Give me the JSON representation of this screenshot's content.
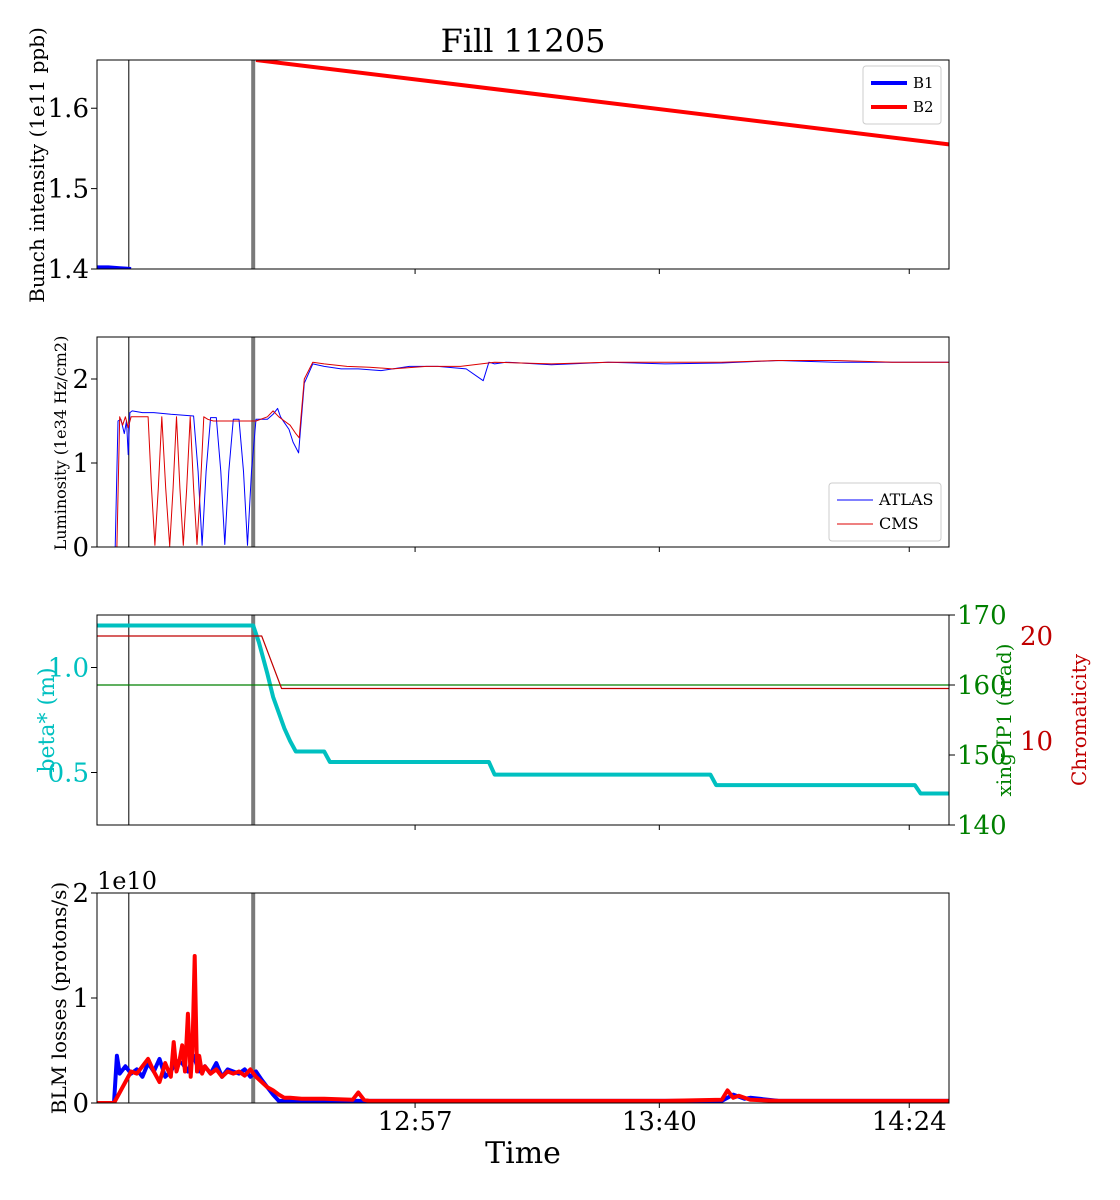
{
  "title": "Fill 11205",
  "xlabel": "Time",
  "x_ticks": [
    "12:57",
    "13:40",
    "14:24"
  ],
  "chart_data": [
    {
      "type": "line",
      "id": "intensity",
      "ylabel": "Bunch intensity (1e11 ppb)",
      "ylim": [
        1.4,
        1.66
      ],
      "yticks": [
        {
          "v": 1.4,
          "label": "1.4"
        },
        {
          "v": 1.5,
          "label": "1.5"
        },
        {
          "v": 1.6,
          "label": "1.6"
        }
      ],
      "legend": "upper right",
      "series": [
        {
          "name": "B1",
          "color": "#0000ff",
          "width": 4,
          "x": [
            0,
            2,
            4,
            6
          ],
          "y": [
            1.402,
            1.402,
            1.401,
            1.4
          ]
        },
        {
          "name": "B2",
          "color": "#ff0000",
          "width": 4,
          "x": [
            28,
            150
          ],
          "y": [
            1.66,
            1.555
          ]
        }
      ]
    },
    {
      "type": "line",
      "id": "lumi",
      "ylabel": "Luminosity (1e34 Hz/cm2)",
      "ylim": [
        0,
        2.5
      ],
      "yticks": [
        {
          "v": 0,
          "label": "0"
        },
        {
          "v": 1,
          "label": "1"
        },
        {
          "v": 2,
          "label": "2"
        }
      ],
      "legend": "lower right",
      "series": [
        {
          "name": "ATLAS",
          "color": "#0000ff",
          "width": 1,
          "x": [
            0,
            3.2,
            3.7,
            4.2,
            4.8,
            5.2,
            5.5,
            5.8,
            6.2,
            8,
            10,
            13,
            17,
            17.8,
            18.5,
            19.2,
            20,
            21,
            21.8,
            22.5,
            23.2,
            24,
            25,
            25.8,
            26.5,
            27.2,
            28,
            29,
            30,
            31,
            31.8,
            32.3,
            33,
            33.8,
            34.5,
            35.5,
            36.5,
            38,
            40,
            43,
            46,
            50,
            55,
            60,
            65,
            68,
            69,
            70,
            72,
            80,
            90,
            100,
            110,
            120,
            130,
            140,
            150
          ],
          "y": [
            0,
            0,
            1.5,
            1.52,
            1.35,
            1.5,
            1.1,
            1.6,
            1.62,
            1.6,
            1.6,
            1.58,
            1.56,
            0.9,
            0.02,
            0.9,
            1.54,
            1.54,
            0.9,
            0.03,
            0.9,
            1.52,
            1.52,
            0.9,
            0.02,
            0.9,
            1.52,
            1.52,
            1.52,
            1.58,
            1.65,
            1.55,
            1.48,
            1.4,
            1.25,
            1.12,
            1.95,
            2.18,
            2.15,
            2.12,
            2.12,
            2.1,
            2.15,
            2.15,
            2.12,
            1.98,
            2.2,
            2.18,
            2.2,
            2.17,
            2.2,
            2.18,
            2.19,
            2.22,
            2.2,
            2.2,
            2.2
          ]
        },
        {
          "name": "CMS",
          "color": "#dd0000",
          "width": 1,
          "x": [
            0,
            3.5,
            4,
            4.5,
            5,
            5.5,
            6,
            8,
            9,
            9.6,
            10.2,
            10.8,
            11.4,
            12.1,
            12.8,
            13.4,
            14,
            14.6,
            15.2,
            15.8,
            16.4,
            17,
            17.6,
            18.2,
            18.8,
            19.5,
            20.5,
            25,
            28,
            30,
            31,
            32,
            33,
            34,
            35,
            35.6,
            36.5,
            38,
            40,
            44,
            48,
            52,
            58,
            64,
            70,
            80,
            90,
            100,
            110,
            120,
            130,
            140,
            150
          ],
          "y": [
            0,
            0,
            1.55,
            1.45,
            1.55,
            1.42,
            1.55,
            1.55,
            1.55,
            0.7,
            0.02,
            0.7,
            1.55,
            0.7,
            0.01,
            0.7,
            1.55,
            0.7,
            0.02,
            0.7,
            1.55,
            0.7,
            0.03,
            0.7,
            1.55,
            1.52,
            1.5,
            1.5,
            1.5,
            1.55,
            1.62,
            1.55,
            1.5,
            1.45,
            1.35,
            1.3,
            2.0,
            2.2,
            2.18,
            2.15,
            2.14,
            2.12,
            2.15,
            2.15,
            2.2,
            2.18,
            2.2,
            2.2,
            2.2,
            2.22,
            2.22,
            2.2,
            2.2
          ]
        }
      ]
    },
    {
      "type": "line",
      "id": "optics",
      "ylabel": "beta* (m)",
      "ylabel_right1": "xing IP1 (urad)",
      "ylabel_right2": "Chromaticity",
      "ylim": [
        0.25,
        1.25
      ],
      "ylim_right1": [
        140,
        170
      ],
      "ylim_right2": [
        2,
        22
      ],
      "yticks": [
        {
          "v": 0.5,
          "label": "0.5"
        },
        {
          "v": 1.0,
          "label": "1.0"
        }
      ],
      "yticks_right1": [
        {
          "v": 140,
          "label": "140"
        },
        {
          "v": 150,
          "label": "150"
        },
        {
          "v": 160,
          "label": "160"
        },
        {
          "v": 170,
          "label": "170"
        }
      ],
      "yticks_right2": [
        {
          "v": 10,
          "label": "10"
        },
        {
          "v": 20,
          "label": "20"
        }
      ],
      "series": [
        {
          "name": "beta*",
          "axis": "left",
          "color": "#00c0c0",
          "width": 4,
          "x": [
            0,
            27.5,
            28.5,
            30,
            31,
            33,
            34,
            35,
            40,
            41,
            69,
            70,
            108,
            109,
            144,
            145,
            150
          ],
          "y": [
            1.2,
            1.2,
            1.12,
            0.97,
            0.86,
            0.71,
            0.65,
            0.6,
            0.6,
            0.55,
            0.55,
            0.49,
            0.49,
            0.44,
            0.44,
            0.4,
            0.4
          ]
        },
        {
          "name": "xing IP1",
          "axis": "right1",
          "color": "#008000",
          "width": 1.2,
          "x": [
            0,
            150
          ],
          "y": [
            160,
            160
          ]
        },
        {
          "name": "Chromaticity",
          "axis": "right2",
          "color": "#c00000",
          "width": 1.2,
          "x": [
            0,
            29,
            32.5,
            150
          ],
          "y": [
            20,
            20,
            15,
            15
          ]
        }
      ]
    },
    {
      "type": "line",
      "id": "blm",
      "ylabel": "BLM losses (protons/s)",
      "offset_text": "1e10",
      "ylim": [
        0,
        2
      ],
      "yticks": [
        {
          "v": 0,
          "label": "0"
        },
        {
          "v": 1,
          "label": "1"
        },
        {
          "v": 2,
          "label": "2"
        }
      ],
      "series": [
        {
          "name": "B1",
          "color": "#0000ff",
          "width": 4,
          "x": [
            0,
            3,
            3.5,
            4,
            5,
            6,
            7,
            8,
            9,
            10,
            11,
            12,
            13,
            14,
            15,
            16,
            17,
            18,
            19,
            20,
            21,
            22,
            23,
            24,
            25,
            26,
            27,
            28,
            29,
            30,
            31,
            32,
            33,
            35,
            40,
            50,
            60,
            70,
            80,
            100,
            110,
            112,
            114,
            115,
            120,
            130,
            140,
            150
          ],
          "y": [
            0,
            0,
            0.45,
            0.28,
            0.35,
            0.28,
            0.32,
            0.25,
            0.38,
            0.3,
            0.42,
            0.25,
            0.3,
            0.4,
            0.38,
            0.3,
            0.45,
            0.3,
            0.35,
            0.28,
            0.38,
            0.25,
            0.32,
            0.3,
            0.28,
            0.32,
            0.25,
            0.3,
            0.22,
            0.15,
            0.08,
            0.02,
            0.02,
            0.02,
            0.02,
            0.02,
            0.02,
            0.02,
            0.02,
            0.02,
            0.02,
            0.08,
            0.04,
            0.05,
            0.02,
            0.02,
            0.02,
            0.02
          ]
        },
        {
          "name": "B2",
          "color": "#ff0000",
          "width": 4,
          "x": [
            0,
            3,
            4,
            5,
            6,
            7,
            8,
            9,
            10,
            11,
            12,
            13,
            13.5,
            14,
            14.5,
            15,
            15.5,
            16,
            16.5,
            16.8,
            17.2,
            17.6,
            18,
            18.5,
            19,
            20,
            21,
            22,
            23,
            24,
            25,
            26,
            27,
            28,
            29,
            30,
            31,
            32,
            33,
            34,
            36,
            40,
            45,
            46,
            47,
            48,
            50,
            60,
            70,
            80,
            90,
            100,
            110,
            111,
            112,
            113,
            115,
            120,
            130,
            140,
            150
          ],
          "y": [
            0,
            0,
            0.1,
            0.2,
            0.3,
            0.28,
            0.35,
            0.42,
            0.3,
            0.2,
            0.38,
            0.25,
            0.58,
            0.3,
            0.4,
            0.55,
            0.3,
            0.85,
            0.25,
            0.5,
            1.4,
            0.3,
            0.45,
            0.28,
            0.35,
            0.28,
            0.32,
            0.25,
            0.3,
            0.28,
            0.3,
            0.26,
            0.32,
            0.25,
            0.2,
            0.15,
            0.12,
            0.08,
            0.05,
            0.05,
            0.04,
            0.04,
            0.03,
            0.1,
            0.03,
            0.02,
            0.02,
            0.02,
            0.02,
            0.02,
            0.02,
            0.02,
            0.03,
            0.12,
            0.05,
            0.07,
            0.03,
            0.02,
            0.02,
            0.02,
            0.02
          ]
        }
      ]
    }
  ],
  "markers": [
    {
      "name": "injection-marker",
      "x": 5.6,
      "color": "#000000",
      "width": 1
    },
    {
      "name": "stable-beams-marker",
      "x": 27.5,
      "color": "#7a7a7a",
      "width": 4
    }
  ]
}
